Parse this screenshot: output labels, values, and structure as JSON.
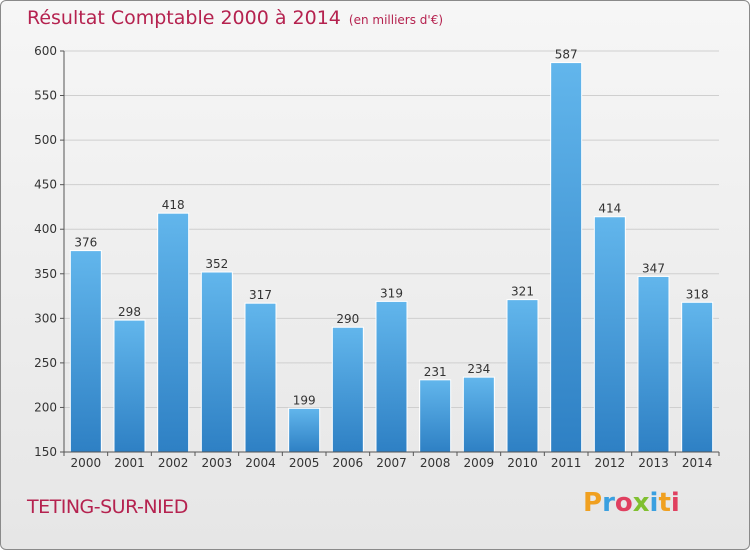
{
  "chart_data": {
    "type": "bar",
    "title": "Résultat Comptable 2000 à 2014",
    "subtitle": "(en milliers d'€)",
    "categories": [
      "2000",
      "2001",
      "2002",
      "2003",
      "2004",
      "2005",
      "2006",
      "2007",
      "2008",
      "2009",
      "2010",
      "2011",
      "2012",
      "2013",
      "2014"
    ],
    "values": [
      376,
      298,
      418,
      352,
      317,
      199,
      290,
      319,
      231,
      234,
      321,
      587,
      414,
      347,
      318
    ],
    "ylim": [
      150,
      600
    ],
    "yticks": [
      150,
      200,
      250,
      300,
      350,
      400,
      450,
      500,
      550,
      600
    ],
    "grid": true,
    "bar_color": "#5aaee8",
    "bar_color_dark": "#2f84c8"
  },
  "footer": {
    "commune": "TETING-SUR-NIED",
    "logo_letters": [
      "P",
      "r",
      "o",
      "x",
      "i",
      "t",
      "i"
    ],
    "logo_colors": [
      "#f0a020",
      "#3aa0e0",
      "#e04060",
      "#80c030",
      "#3aa0e0",
      "#f0a020",
      "#e04060"
    ]
  }
}
